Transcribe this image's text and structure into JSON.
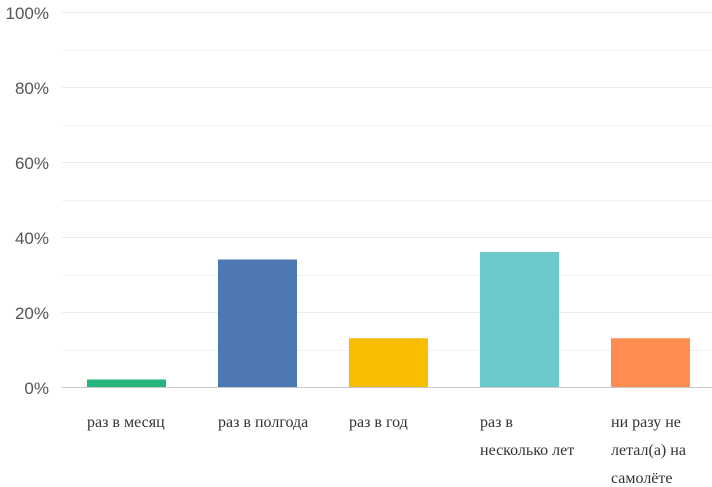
{
  "chart_data": {
    "type": "bar",
    "categories": [
      [
        "раз в месяц"
      ],
      [
        "раз в полгода"
      ],
      [
        "раз в год"
      ],
      [
        "раз в",
        "несколько лет"
      ],
      [
        "ни разу не",
        "летал(а) на",
        "самолёте"
      ]
    ],
    "values": [
      2,
      34,
      13,
      36,
      13
    ],
    "colors": [
      "#26b47c",
      "#4d78b3",
      "#f8bd00",
      "#6bc9cc",
      "#fd8c50"
    ],
    "ylim": [
      0,
      100
    ],
    "yticks": [
      0,
      20,
      40,
      60,
      80,
      100
    ],
    "ytick_labels": [
      "0%",
      "20%",
      "40%",
      "60%",
      "80%",
      "100%"
    ],
    "minor_gridlines": true,
    "grid": true,
    "legend": "none"
  }
}
